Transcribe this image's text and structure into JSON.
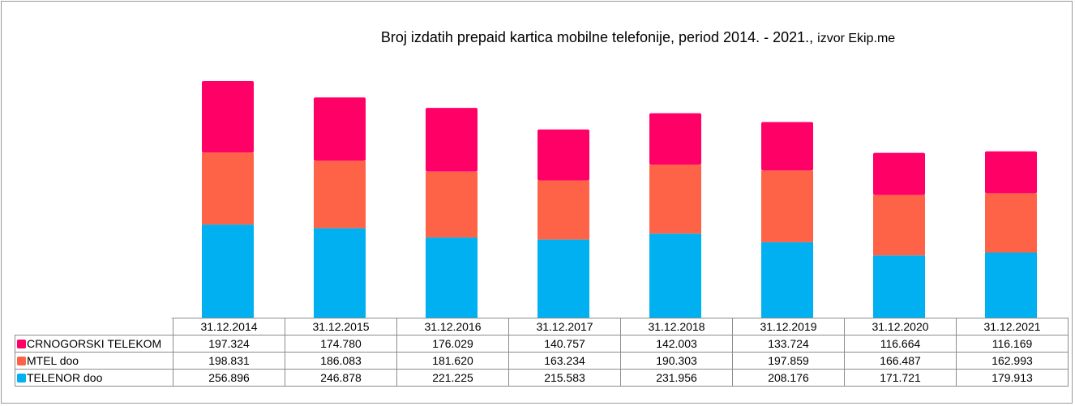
{
  "title": "Broj izdatih prepaid kartica mobilne telefonije, period 2014. - 2021.,",
  "title_source": "izvor Ekip.me",
  "chart_data": {
    "type": "bar",
    "stacked": true,
    "title": "Broj izdatih prepaid kartica mobilne telefonije, period 2014. - 2021., izvor Ekip.me",
    "categories": [
      "31.12.2014",
      "31.12.2015",
      "31.12.2016",
      "31.12.2017",
      "31.12.2018",
      "31.12.2019",
      "31.12.2020",
      "31.12.2021"
    ],
    "series": [
      {
        "name": "CRNOGORSKI TELEKOM",
        "color": "#ff0066",
        "values": [
          197324,
          174780,
          176029,
          140757,
          142003,
          133724,
          116664,
          116169
        ],
        "labels": [
          "197.324",
          "174.780",
          "176.029",
          "140.757",
          "142.003",
          "133.724",
          "116.664",
          "116.169"
        ]
      },
      {
        "name": "MTEL doo",
        "color": "#ff6347",
        "values": [
          198831,
          186083,
          181620,
          163234,
          190303,
          197859,
          166487,
          162993
        ],
        "labels": [
          "198.831",
          "186.083",
          "181.620",
          "163.234",
          "190.303",
          "197.859",
          "166.487",
          "162.993"
        ]
      },
      {
        "name": "TELENOR doo",
        "color": "#00b0f0",
        "values": [
          256896,
          246878,
          221225,
          215583,
          231956,
          208176,
          171721,
          179913
        ],
        "labels": [
          "256.896",
          "246.878",
          "221.225",
          "215.583",
          "231.956",
          "208.176",
          "171.721",
          "179.913"
        ]
      }
    ],
    "stack_order_bottom_to_top": [
      "TELENOR doo",
      "MTEL doo",
      "CRNOGORSKI TELEKOM"
    ],
    "legend": "data-table",
    "grid": false
  }
}
